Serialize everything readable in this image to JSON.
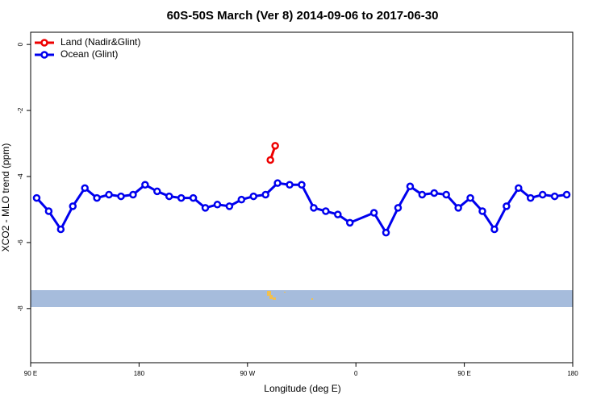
{
  "chart_data": {
    "type": "line",
    "title": "60S-50S March (Ver 8)   2014-09-06 to 2017-06-30",
    "x_label": "Longitude (deg E)",
    "y_label": "XCO2 - MLO trend (ppm)",
    "xlim": [
      90,
      540
    ],
    "xticks": [
      {
        "value": 90,
        "label": "90 E"
      },
      {
        "value": 180,
        "label": "180"
      },
      {
        "value": 270,
        "label": "90 W"
      },
      {
        "value": 360,
        "label": "0"
      },
      {
        "value": 450,
        "label": "90 E"
      },
      {
        "value": 540,
        "label": "180"
      }
    ],
    "ylim": [
      -9.64,
      0.37
    ],
    "yticks": [
      0,
      -2,
      -4,
      -6,
      -8
    ],
    "legend": "top-left",
    "series": [
      {
        "name": "Land (Nadir&Glint)",
        "color": "#ee0000",
        "x": [
          289,
          293
        ],
        "values": [
          -3.5,
          -3.07
        ]
      },
      {
        "name": "Ocean (Glint)",
        "color": "#0000ee",
        "x": [
          95,
          105,
          115,
          125,
          135,
          145,
          155,
          165,
          175,
          185,
          195,
          205,
          215,
          225,
          235,
          245,
          255,
          265,
          275,
          285,
          295,
          305,
          315,
          325,
          335,
          345,
          355,
          375,
          385,
          395,
          405,
          415,
          425,
          435,
          445,
          455,
          465,
          475,
          485,
          495,
          505,
          515,
          525,
          535
        ],
        "values": [
          -4.65,
          -5.05,
          -5.6,
          -4.9,
          -4.35,
          -4.65,
          -4.55,
          -4.6,
          -4.55,
          -4.25,
          -4.45,
          -4.6,
          -4.65,
          -4.65,
          -4.95,
          -4.85,
          -4.9,
          -4.7,
          -4.6,
          -4.55,
          -4.2,
          -4.25,
          -4.25,
          -4.95,
          -5.05,
          -5.15,
          -5.4,
          -5.1,
          -5.7,
          -4.95,
          -4.3,
          -4.55,
          -4.5,
          -4.55,
          -4.95,
          -4.65,
          -5.05,
          -5.6,
          -4.9,
          -4.35,
          -4.65,
          -4.55,
          -4.6,
          -4.55
        ]
      }
    ]
  }
}
